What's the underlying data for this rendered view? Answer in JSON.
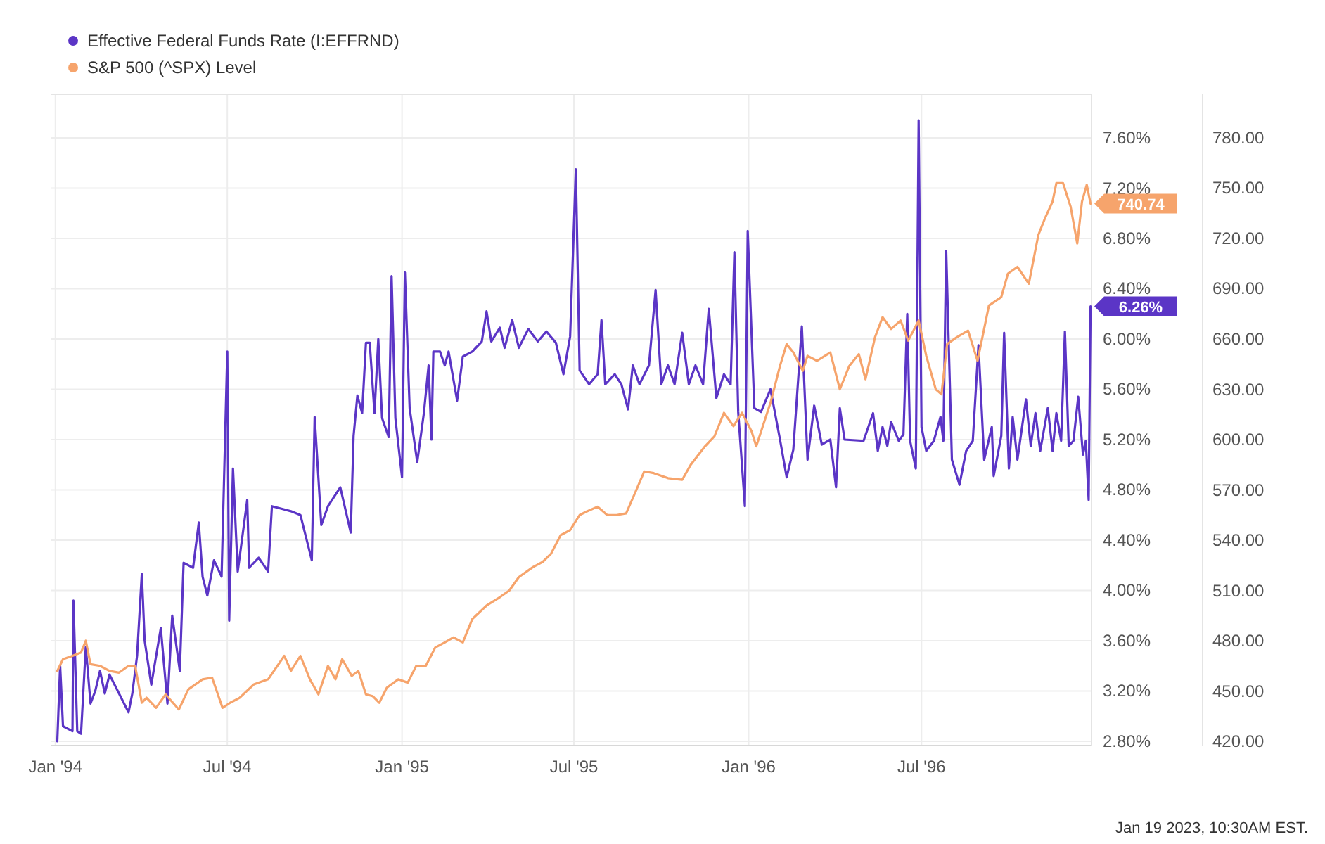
{
  "chart_data": {
    "type": "line",
    "grid": true,
    "legend": "top left",
    "xlim": [
      "1993-12-27",
      "1996-12-27"
    ],
    "xticks": [
      {
        "value": "1994-01-01",
        "label": "Jan '94"
      },
      {
        "value": "1994-07-01",
        "label": "Jul '94"
      },
      {
        "value": "1995-01-01",
        "label": "Jan '95"
      },
      {
        "value": "1995-07-01",
        "label": "Jul '95"
      },
      {
        "value": "1996-01-01",
        "label": "Jan '96"
      },
      {
        "value": "1996-07-01",
        "label": "Jul '96"
      }
    ],
    "ylim": [
      2.766,
      7.947
    ],
    "yticks": [
      {
        "value": 2.8,
        "label": "2.80%"
      },
      {
        "value": 3.2,
        "label": "3.20%"
      },
      {
        "value": 3.6,
        "label": "3.60%"
      },
      {
        "value": 4.0,
        "label": "4.00%"
      },
      {
        "value": 4.4,
        "label": "4.40%"
      },
      {
        "value": 4.8,
        "label": "4.80%"
      },
      {
        "value": 5.2,
        "label": "5.20%"
      },
      {
        "value": 5.6,
        "label": "5.60%"
      },
      {
        "value": 6.0,
        "label": "6.00%"
      },
      {
        "value": 6.4,
        "label": "6.40%"
      },
      {
        "value": 6.8,
        "label": "6.80%"
      },
      {
        "value": 7.2,
        "label": "7.20%"
      },
      {
        "value": 7.6,
        "label": "7.60%"
      }
    ],
    "y2lim": [
      417.5,
      806
    ],
    "y2ticks": [
      {
        "value": 420,
        "label": "420.00"
      },
      {
        "value": 450,
        "label": "450.00"
      },
      {
        "value": 480,
        "label": "480.00"
      },
      {
        "value": 510,
        "label": "510.00"
      },
      {
        "value": 540,
        "label": "540.00"
      },
      {
        "value": 570,
        "label": "570.00"
      },
      {
        "value": 600,
        "label": "600.00"
      },
      {
        "value": 630,
        "label": "630.00"
      },
      {
        "value": 660,
        "label": "660.00"
      },
      {
        "value": 690,
        "label": "690.00"
      },
      {
        "value": 720,
        "label": "720.00"
      },
      {
        "value": 750,
        "label": "750.00"
      },
      {
        "value": 780,
        "label": "780.00"
      }
    ],
    "annotations": [
      "Jan 19 2023, 10:30AM EST."
    ],
    "series": [
      {
        "name": "Effective Federal Funds Rate (I:EFFRND)",
        "color": "#5b35c6",
        "axis": "y",
        "x": [
          "1994-01-03",
          "1994-01-06",
          "1994-01-09",
          "1994-01-19",
          "1994-01-20",
          "1994-01-24",
          "1994-01-28",
          "1994-02-02",
          "1994-02-07",
          "1994-02-12",
          "1994-02-17",
          "1994-02-22",
          "1994-02-27",
          "1994-03-09",
          "1994-03-19",
          "1994-03-23",
          "1994-03-28",
          "1994-04-02",
          "1994-04-05",
          "1994-04-12",
          "1994-04-22",
          "1994-04-29",
          "1994-05-04",
          "1994-05-12",
          "1994-05-16",
          "1994-05-26",
          "1994-06-01",
          "1994-06-05",
          "1994-06-10",
          "1994-06-17",
          "1994-06-25",
          "1994-07-01",
          "1994-07-03",
          "1994-07-07",
          "1994-07-12",
          "1994-07-22",
          "1994-07-24",
          "1994-08-03",
          "1994-08-13",
          "1994-08-17",
          "1994-08-27",
          "1994-09-06",
          "1994-09-16",
          "1994-09-28",
          "1994-10-01",
          "1994-10-08",
          "1994-10-15",
          "1994-10-28",
          "1994-11-08",
          "1994-11-11",
          "1994-11-15",
          "1994-11-20",
          "1994-11-24",
          "1994-11-28",
          "1994-12-03",
          "1994-12-07",
          "1994-12-11",
          "1994-12-18",
          "1994-12-21",
          "1994-12-25",
          "1995-01-01",
          "1995-01-04",
          "1995-01-09",
          "1995-01-17",
          "1995-01-24",
          "1995-01-29",
          "1995-02-01",
          "1995-02-03",
          "1995-02-10",
          "1995-02-15",
          "1995-02-19",
          "1995-02-28",
          "1995-03-06",
          "1995-03-16",
          "1995-03-26",
          "1995-03-31",
          "1995-04-05",
          "1995-04-14",
          "1995-04-19",
          "1995-04-27",
          "1995-05-04",
          "1995-05-14",
          "1995-05-24",
          "1995-06-02",
          "1995-06-12",
          "1995-06-20",
          "1995-06-27",
          "1995-07-03",
          "1995-07-07",
          "1995-07-17",
          "1995-07-26",
          "1995-07-30",
          "1995-08-03",
          "1995-08-13",
          "1995-08-20",
          "1995-08-27",
          "1995-09-01",
          "1995-09-08",
          "1995-09-18",
          "1995-09-25",
          "1995-10-01",
          "1995-10-08",
          "1995-10-15",
          "1995-10-23",
          "1995-10-30",
          "1995-11-06",
          "1995-11-14",
          "1995-11-20",
          "1995-11-28",
          "1995-12-06",
          "1995-12-13",
          "1995-12-17",
          "1995-12-21",
          "1995-12-28",
          "1995-12-31",
          "1996-01-07",
          "1996-01-14",
          "1996-01-24",
          "1996-02-03",
          "1996-02-10",
          "1996-02-17",
          "1996-02-26",
          "1996-03-03",
          "1996-03-10",
          "1996-03-18",
          "1996-03-27",
          "1996-04-02",
          "1996-04-06",
          "1996-04-11",
          "1996-05-01",
          "1996-05-11",
          "1996-05-16",
          "1996-05-21",
          "1996-05-26",
          "1996-05-30",
          "1996-06-07",
          "1996-06-12",
          "1996-06-16",
          "1996-06-19",
          "1996-06-25",
          "1996-06-28",
          "1996-07-01",
          "1996-07-06",
          "1996-07-14",
          "1996-07-21",
          "1996-07-24",
          "1996-07-27",
          "1996-08-02",
          "1996-08-10",
          "1996-08-17",
          "1996-08-24",
          "1996-08-30",
          "1996-09-05",
          "1996-09-13",
          "1996-09-15",
          "1996-09-23",
          "1996-09-26",
          "1996-10-01",
          "1996-10-05",
          "1996-10-10",
          "1996-10-19",
          "1996-10-24",
          "1996-10-29",
          "1996-11-03",
          "1996-11-11",
          "1996-11-16",
          "1996-11-20",
          "1996-11-25",
          "1996-11-29",
          "1996-12-03",
          "1996-12-08",
          "1996-12-13",
          "1996-12-18",
          "1996-12-21",
          "1996-12-24",
          "1996-12-26"
        ],
        "values": [
          2.8,
          3.4,
          2.92,
          2.88,
          3.92,
          2.88,
          2.86,
          3.55,
          3.1,
          3.2,
          3.36,
          3.18,
          3.33,
          3.18,
          3.03,
          3.18,
          3.48,
          4.13,
          3.6,
          3.25,
          3.7,
          3.1,
          3.8,
          3.36,
          4.22,
          4.18,
          4.54,
          4.11,
          3.96,
          4.24,
          4.11,
          5.9,
          3.76,
          4.97,
          4.15,
          4.72,
          4.18,
          4.26,
          4.15,
          4.67,
          4.65,
          4.63,
          4.6,
          4.24,
          5.38,
          4.52,
          4.67,
          4.82,
          4.46,
          5.23,
          5.55,
          5.41,
          5.97,
          5.97,
          5.41,
          6.0,
          5.37,
          5.22,
          6.5,
          5.37,
          4.9,
          6.53,
          5.45,
          5.02,
          5.41,
          5.79,
          5.2,
          5.9,
          5.9,
          5.79,
          5.9,
          5.51,
          5.86,
          5.9,
          5.98,
          6.22,
          5.98,
          6.09,
          5.93,
          6.15,
          5.93,
          6.08,
          5.98,
          6.06,
          5.97,
          5.72,
          6.02,
          7.35,
          5.75,
          5.64,
          5.72,
          6.15,
          5.64,
          5.72,
          5.64,
          5.44,
          5.79,
          5.64,
          5.79,
          6.39,
          5.64,
          5.79,
          5.64,
          6.05,
          5.64,
          5.79,
          5.64,
          6.24,
          5.53,
          5.72,
          5.64,
          6.69,
          5.42,
          4.67,
          6.86,
          5.45,
          5.42,
          5.6,
          5.2,
          4.9,
          5.12,
          6.1,
          5.04,
          5.47,
          5.16,
          5.2,
          4.82,
          5.45,
          5.2,
          5.19,
          5.41,
          5.11,
          5.3,
          5.15,
          5.34,
          5.19,
          5.24,
          6.2,
          5.19,
          4.97,
          7.74,
          5.3,
          5.11,
          5.19,
          5.38,
          5.19,
          6.7,
          5.04,
          4.84,
          5.11,
          5.19,
          5.95,
          5.04,
          5.3,
          4.91,
          5.23,
          6.05,
          4.97,
          5.38,
          5.04,
          5.52,
          5.15,
          5.41,
          5.11,
          5.45,
          5.11,
          5.41,
          5.19,
          6.06,
          5.15,
          5.19,
          5.54,
          5.08,
          5.19,
          4.72,
          6.26
        ],
        "value_labels": [
          null,
          null,
          null,
          null,
          null,
          null,
          null,
          null,
          null,
          null,
          null,
          null,
          null,
          null,
          null,
          null,
          null,
          null,
          null,
          null,
          null,
          null,
          null,
          null,
          null,
          null,
          null,
          null,
          null,
          null,
          null,
          null,
          null,
          null,
          null,
          null,
          null,
          null,
          null,
          null,
          null,
          null,
          null,
          null,
          null,
          null,
          null,
          null,
          null,
          null,
          null,
          null,
          null,
          null,
          null,
          null,
          null,
          null,
          null,
          null,
          null,
          null,
          null,
          null,
          null,
          null,
          null,
          null,
          null,
          null,
          null,
          null,
          null,
          null,
          null,
          null,
          null,
          null,
          null,
          null,
          null,
          null,
          null,
          null,
          null,
          null,
          null,
          null,
          null,
          null,
          null,
          null,
          null,
          null,
          null,
          null,
          null,
          null,
          null,
          null,
          null,
          null,
          null,
          null,
          null,
          null,
          null,
          null,
          null,
          null,
          null,
          null,
          null,
          null,
          null,
          null,
          null,
          null,
          null,
          null,
          null,
          null,
          null,
          null,
          null,
          null,
          null,
          null,
          null,
          null,
          null,
          null,
          null,
          null,
          null,
          null,
          null,
          null,
          null,
          null,
          null,
          null,
          null,
          null,
          null,
          null,
          null,
          null,
          null,
          null,
          null,
          null,
          null,
          null,
          null,
          null,
          null,
          null,
          null,
          null,
          null,
          null,
          null,
          null,
          null,
          null,
          null,
          null,
          null,
          null,
          null,
          null,
          null,
          null,
          null,
          "6.26%"
        ]
      },
      {
        "name": "S&P 500 (^SPX) Level",
        "color": "#f6a46c",
        "axis": "y2",
        "x": [
          "1994-01-03",
          "1994-01-09",
          "1994-01-19",
          "1994-01-28",
          "1994-02-02",
          "1994-02-07",
          "1994-02-17",
          "1994-02-27",
          "1994-03-09",
          "1994-03-19",
          "1994-03-26",
          "1994-04-02",
          "1994-04-07",
          "1994-04-17",
          "1994-04-27",
          "1994-05-11",
          "1994-05-21",
          "1994-06-05",
          "1994-06-15",
          "1994-06-26",
          "1994-07-04",
          "1994-07-14",
          "1994-07-29",
          "1994-08-13",
          "1994-08-30",
          "1994-09-06",
          "1994-09-16",
          "1994-09-26",
          "1994-10-05",
          "1994-10-15",
          "1994-10-23",
          "1994-10-30",
          "1994-11-09",
          "1994-11-16",
          "1994-11-24",
          "1994-12-01",
          "1994-12-08",
          "1994-12-16",
          "1994-12-28",
          "1995-01-07",
          "1995-01-16",
          "1995-01-26",
          "1995-02-05",
          "1995-02-15",
          "1995-02-24",
          "1995-03-06",
          "1995-03-16",
          "1995-03-31",
          "1995-04-14",
          "1995-04-24",
          "1995-05-04",
          "1995-05-19",
          "1995-05-29",
          "1995-06-07",
          "1995-06-17",
          "1995-06-27",
          "1995-07-07",
          "1995-07-14",
          "1995-07-26",
          "1995-08-05",
          "1995-08-15",
          "1995-08-25",
          "1995-09-04",
          "1995-09-13",
          "1995-09-23",
          "1995-10-08",
          "1995-10-23",
          "1995-11-01",
          "1995-11-16",
          "1995-11-26",
          "1995-12-06",
          "1995-12-16",
          "1995-12-25",
          "1996-01-04",
          "1996-01-09",
          "1996-01-24",
          "1996-02-03",
          "1996-02-10",
          "1996-02-17",
          "1996-02-27",
          "1996-03-03",
          "1996-03-13",
          "1996-03-27",
          "1996-04-06",
          "1996-04-16",
          "1996-04-26",
          "1996-05-03",
          "1996-05-13",
          "1996-05-21",
          "1996-05-30",
          "1996-06-09",
          "1996-06-17",
          "1996-06-28",
          "1996-07-06",
          "1996-07-16",
          "1996-07-22",
          "1996-07-28",
          "1996-08-07",
          "1996-08-19",
          "1996-08-29",
          "1996-09-10",
          "1996-09-23",
          "1996-09-30",
          "1996-10-10",
          "1996-10-22",
          "1996-11-01",
          "1996-11-08",
          "1996-11-16",
          "1996-11-20",
          "1996-11-27",
          "1996-12-05",
          "1996-12-12",
          "1996-12-17",
          "1996-12-22",
          "1996-12-26"
        ],
        "values": [
          462,
          469,
          471,
          473,
          480,
          466,
          465,
          462,
          461,
          465,
          465,
          443,
          446,
          440,
          448,
          439,
          451,
          457,
          458,
          440,
          443,
          446,
          454,
          457,
          471,
          462,
          471,
          457,
          448,
          465,
          457,
          469,
          459,
          462,
          448,
          447,
          443,
          452,
          457,
          455,
          465,
          465,
          476,
          479,
          482,
          479,
          493,
          501,
          506,
          510,
          518,
          524,
          527,
          532,
          543,
          546,
          555,
          557,
          560,
          555,
          555,
          556,
          569,
          581,
          580,
          577,
          576,
          585,
          596,
          602,
          616,
          608,
          616,
          605,
          596,
          622,
          644,
          657,
          652,
          641,
          650,
          647,
          652,
          630,
          644,
          651,
          636,
          661,
          673,
          666,
          671,
          659,
          671,
          650,
          630,
          627,
          657,
          661,
          665,
          647,
          680,
          685,
          699,
          703,
          693,
          722,
          732,
          742,
          753,
          753,
          739,
          717,
          742,
          752,
          740.74
        ],
        "value_labels": [
          null,
          null,
          null,
          null,
          null,
          null,
          null,
          null,
          null,
          null,
          null,
          null,
          null,
          null,
          null,
          null,
          null,
          null,
          null,
          null,
          null,
          null,
          null,
          null,
          null,
          null,
          null,
          null,
          null,
          null,
          null,
          null,
          null,
          null,
          null,
          null,
          null,
          null,
          null,
          null,
          null,
          null,
          null,
          null,
          null,
          null,
          null,
          null,
          null,
          null,
          null,
          null,
          null,
          null,
          null,
          null,
          null,
          null,
          null,
          null,
          null,
          null,
          null,
          null,
          null,
          null,
          null,
          null,
          null,
          null,
          null,
          null,
          null,
          null,
          null,
          null,
          null,
          null,
          null,
          null,
          null,
          null,
          null,
          null,
          null,
          null,
          null,
          null,
          null,
          null,
          null,
          null,
          null,
          null,
          null,
          null,
          null,
          null,
          null,
          null,
          null,
          null,
          null,
          null,
          null,
          null,
          null,
          null,
          null,
          null,
          null,
          null,
          null,
          null,
          "740.74"
        ]
      }
    ]
  }
}
